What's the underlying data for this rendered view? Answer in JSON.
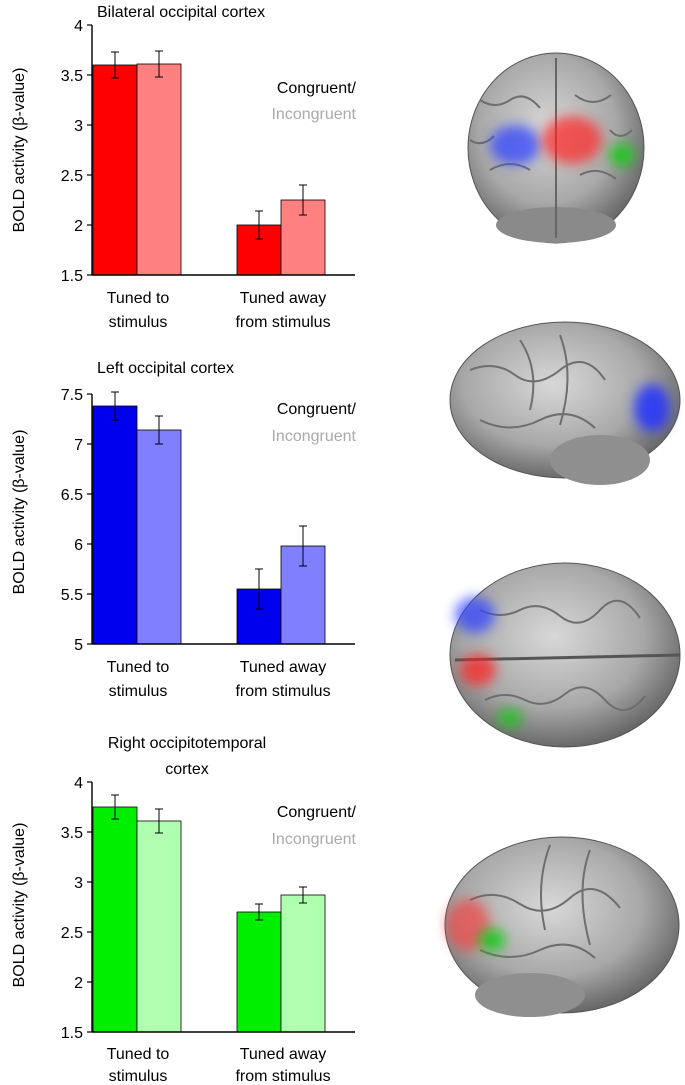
{
  "chart_data": [
    {
      "type": "bar",
      "title": "Bilateral occipital cortex",
      "ylabel": "BOLD activity (β-value)",
      "ylim": [
        1.5,
        4
      ],
      "yticks": [
        "1.5",
        "2",
        "2.5",
        "3",
        "3.5",
        "4"
      ],
      "categories": [
        "Tuned to stimulus",
        "Tuned away from stimulus"
      ],
      "category_lines": [
        [
          "Tuned to",
          "stimulus"
        ],
        [
          "Tuned away",
          "from stimulus"
        ]
      ],
      "series": [
        {
          "name": "Congruent/",
          "values": [
            3.6,
            2.0
          ],
          "errors": [
            0.13,
            0.14
          ],
          "color": "#ff0000"
        },
        {
          "name": "Incongruent",
          "values": [
            3.61,
            2.25
          ],
          "errors": [
            0.13,
            0.15
          ],
          "color": "#ff8080"
        }
      ],
      "legend": {
        "line1": "Congruent/",
        "line2": "Incongruent",
        "line1_color": "#000000",
        "line2_color": "#aaaaaa",
        "placement": "right"
      }
    },
    {
      "type": "bar",
      "title": "Left occipital cortex",
      "ylabel": "BOLD activity (β-value)",
      "ylim": [
        5,
        7.5
      ],
      "yticks": [
        "5",
        "5.5",
        "6",
        "6.5",
        "7",
        "7.5"
      ],
      "categories": [
        "Tuned to stimulus",
        "Tuned away from stimulus"
      ],
      "category_lines": [
        [
          "Tuned to",
          "stimulus"
        ],
        [
          "Tuned away",
          "from stimulus"
        ]
      ],
      "series": [
        {
          "name": "Congruent/",
          "values": [
            7.38,
            5.55
          ],
          "errors": [
            0.14,
            0.2
          ],
          "color": "#0000ee"
        },
        {
          "name": "Incongruent",
          "values": [
            7.14,
            5.98
          ],
          "errors": [
            0.14,
            0.2
          ],
          "color": "#8080ff"
        }
      ],
      "legend": {
        "line1": "Congruent/",
        "line2": "Incongruent",
        "line1_color": "#000000",
        "line2_color": "#aaaaaa",
        "placement": "right"
      }
    },
    {
      "type": "bar",
      "title": "Right occipitotemporal cortex",
      "title_lines": [
        "Right occipitotemporal",
        "cortex"
      ],
      "ylabel": "BOLD activity (β-value)",
      "ylim": [
        1.5,
        4
      ],
      "yticks": [
        "1.5",
        "2",
        "2.5",
        "3",
        "3.5",
        "4"
      ],
      "categories": [
        "Tuned to stimulus",
        "Tuned away from stimulus"
      ],
      "category_lines": [
        [
          "Tuned to",
          "stimulus"
        ],
        [
          "Tuned away",
          "from stimulus"
        ]
      ],
      "series": [
        {
          "name": "Congruent/",
          "values": [
            3.75,
            2.7
          ],
          "errors": [
            0.12,
            0.08
          ],
          "color": "#00ee00"
        },
        {
          "name": "Incongruent",
          "values": [
            3.61,
            2.87
          ],
          "errors": [
            0.12,
            0.08
          ],
          "color": "#b0ffb0"
        }
      ],
      "legend": {
        "line1": "Congruent/",
        "line2": "Incongruent",
        "line1_color": "#000000",
        "line2_color": "#aaaaaa",
        "placement": "right"
      }
    }
  ],
  "brain_images": [
    {
      "icon": "brain-posterior-view-icon",
      "highlights": [
        "blue",
        "red",
        "green"
      ]
    },
    {
      "icon": "brain-left-lateral-view-icon",
      "highlights": [
        "blue"
      ]
    },
    {
      "icon": "brain-top-view-icon",
      "highlights": [
        "blue",
        "red",
        "green"
      ]
    },
    {
      "icon": "brain-right-lateral-view-icon",
      "highlights": [
        "red",
        "green"
      ]
    }
  ]
}
